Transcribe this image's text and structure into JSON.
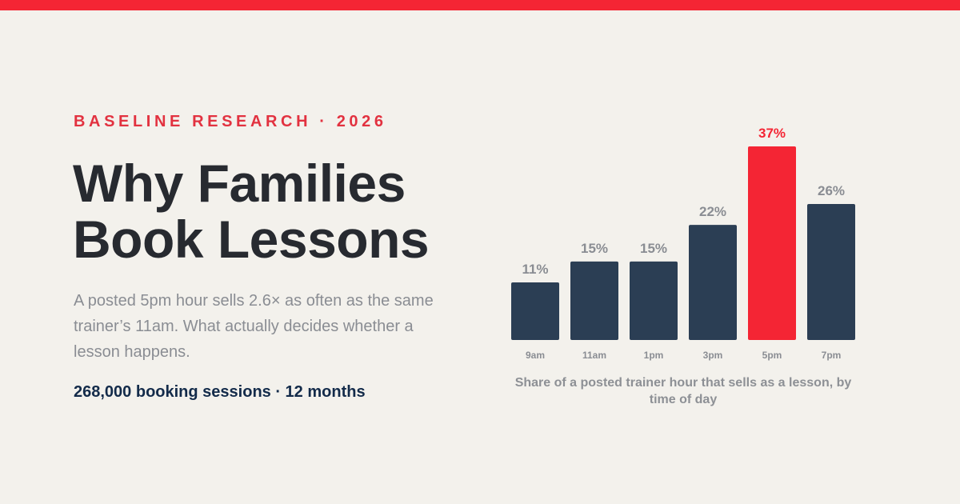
{
  "header": {
    "eyebrow": "BASELINE RESEARCH · 2026",
    "title_lines": [
      "Why Families",
      "Book Lessons"
    ],
    "subtitle": "A posted 5pm hour sells 2.6× as often as the same trainer’s 11am. What actually decides whether a lesson happens.",
    "meta": "268,000 booking sessions · 12 months"
  },
  "colors": {
    "accent": "#f42534",
    "bar": "#2b3e54",
    "highlight": "#f42534",
    "label": "#8a8d93",
    "text_dark": "#272a30"
  },
  "chart_data": {
    "type": "bar",
    "title": "",
    "caption": "Share of a posted trainer hour that sells as a lesson, by time of day",
    "categories": [
      "9am",
      "11am",
      "1pm",
      "3pm",
      "5pm",
      "7pm"
    ],
    "values": [
      11,
      15,
      15,
      22,
      37,
      26
    ],
    "data_labels": [
      "11%",
      "15%",
      "15%",
      "22%",
      "37%",
      "26%"
    ],
    "unit": "%",
    "highlight_index": 4,
    "xlabel": "",
    "ylabel": "",
    "ylim": [
      0,
      37
    ],
    "grid": false,
    "legend": "none"
  }
}
